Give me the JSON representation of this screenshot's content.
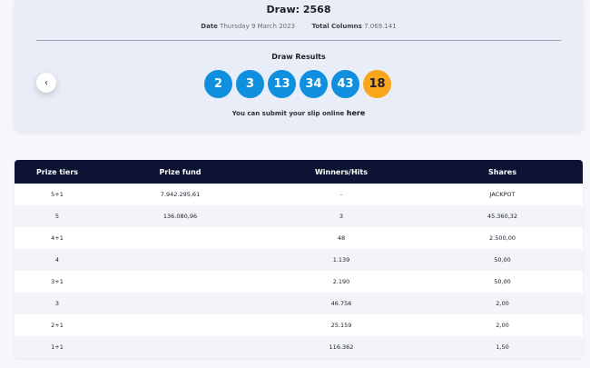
{
  "draw": {
    "title": "Draw: 2568",
    "date_label": "Date",
    "date_value": "Thursday 9 March 2023",
    "columns_label": "Total Columns",
    "columns_value": "7.069.141"
  },
  "results": {
    "title": "Draw Results",
    "numbers": [
      "2",
      "3",
      "13",
      "34",
      "43"
    ],
    "bonus": "18",
    "submit_text": "You can submit your slip online",
    "submit_link": "here"
  },
  "nav": {
    "prev_icon": "chevron-left-icon",
    "prev_glyph": "‹"
  },
  "colors": {
    "ball": "#0f8fde",
    "bonus_ball": "#f8a61b",
    "table_header": "#0c1333"
  },
  "table": {
    "headers": [
      "Prize tiers",
      "Prize fund",
      "Winners/Hits",
      "Shares"
    ],
    "rows": [
      [
        "5+1",
        "7.942.295,61",
        "-",
        "JACKPOT"
      ],
      [
        "5",
        "136.080,96",
        "3",
        "45.360,32"
      ],
      [
        "4+1",
        "",
        "48",
        "2.500,00"
      ],
      [
        "4",
        "",
        "1.139",
        "50,00"
      ],
      [
        "3+1",
        "",
        "2.190",
        "50,00"
      ],
      [
        "3",
        "",
        "46.756",
        "2,00"
      ],
      [
        "2+1",
        "",
        "25.159",
        "2,00"
      ],
      [
        "1+1",
        "",
        "116.362",
        "1,50"
      ]
    ]
  }
}
